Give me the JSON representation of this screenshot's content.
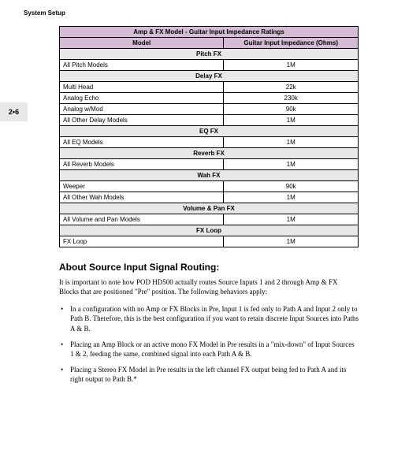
{
  "header": {
    "title": "System Setup",
    "page_number": "2•6"
  },
  "table": {
    "title": "Amp & FX Model - Guitar Input Impedance Ratings",
    "columns": [
      "Model",
      "Guitar Input Impedance (Ohms)"
    ],
    "colors": {
      "header_bg": "#d4bdd4",
      "section_bg": "#e8e8e8",
      "border": "#000000"
    },
    "sections": [
      {
        "name": "Pitch FX",
        "rows": [
          {
            "model": "All Pitch Models",
            "impedance": "1M"
          }
        ]
      },
      {
        "name": "Delay FX",
        "rows": [
          {
            "model": "Multi Head",
            "impedance": "22k"
          },
          {
            "model": "Analog Echo",
            "impedance": "230k"
          },
          {
            "model": "Analog w/Mod",
            "impedance": "90k"
          },
          {
            "model": "All Other Delay Models",
            "impedance": "1M"
          }
        ]
      },
      {
        "name": "EQ FX",
        "rows": [
          {
            "model": "All EQ Models",
            "impedance": "1M"
          }
        ]
      },
      {
        "name": "Reverb FX",
        "rows": [
          {
            "model": "All Reverb Models",
            "impedance": "1M"
          }
        ]
      },
      {
        "name": "Wah FX",
        "rows": [
          {
            "model": "Weeper",
            "impedance": "90k"
          },
          {
            "model": "All Other Wah Models",
            "impedance": "1M"
          }
        ]
      },
      {
        "name": "Volume & Pan FX",
        "rows": [
          {
            "model": "All Volume and Pan Models",
            "impedance": "1M"
          }
        ]
      },
      {
        "name": "FX Loop",
        "rows": [
          {
            "model": "FX Loop",
            "impedance": "1M"
          }
        ]
      }
    ]
  },
  "routing_section": {
    "heading": "About Source Input Signal Routing:",
    "intro": "It is important to note how POD HD500 actually routes Source Inputs 1 and 2 through Amp & FX Blocks that are positioned \"Pre\" position. The following behaviors apply:",
    "bullets": [
      "In a configuration with no Amp or FX Blocks in Pre, Input 1 is fed only to Path A and Input 2 only to Path B. Therefore, this is the best configuration if you want to retain discrete Input Sources into Paths A & B.",
      "Placing an Amp Block or an active mono FX Model in Pre results in a \"mix-down\" of Input Sources 1 & 2, feeding the same, combined signal into each Path A & B.",
      "Placing a Stereo FX Model in Pre results in the left channel FX output being fed to Path A and its right output to Path B.*"
    ]
  }
}
